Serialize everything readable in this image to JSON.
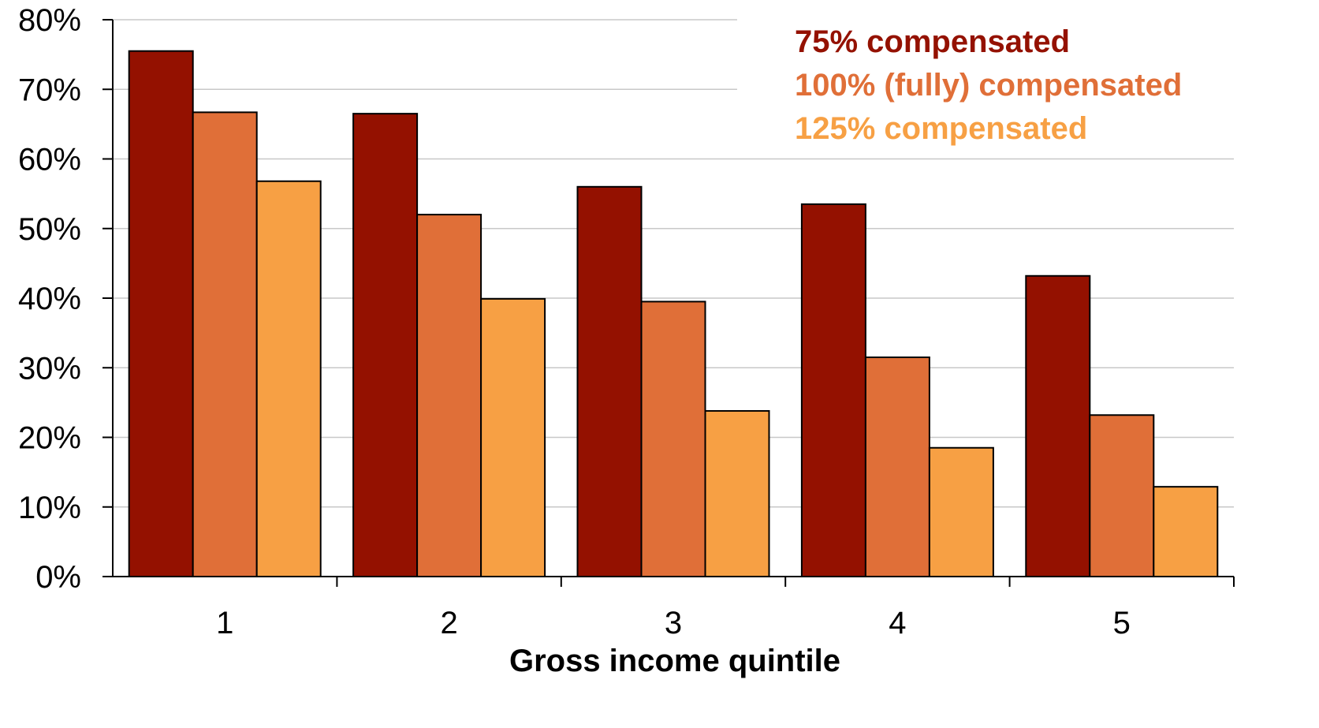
{
  "chart_data": {
    "type": "bar",
    "xlabel": "Gross income quintile",
    "ylabel": "",
    "categories": [
      "1",
      "2",
      "3",
      "4",
      "5"
    ],
    "ylim": [
      0,
      80
    ],
    "yticks": [
      "0%",
      "10%",
      "20%",
      "30%",
      "40%",
      "50%",
      "60%",
      "70%",
      "80%"
    ],
    "grid": true,
    "legend_position": "top-right",
    "series": [
      {
        "name": "75% compensated",
        "color": "#941100",
        "values": [
          75.5,
          66.5,
          56,
          53.5,
          43.2
        ]
      },
      {
        "name": "100% (fully) compensated",
        "color": "#E06F38",
        "values": [
          66.7,
          52,
          39.5,
          31.5,
          23.2
        ]
      },
      {
        "name": "125% compensated",
        "color": "#F7A044",
        "values": [
          56.8,
          39.9,
          23.8,
          18.5,
          12.9
        ]
      }
    ]
  }
}
